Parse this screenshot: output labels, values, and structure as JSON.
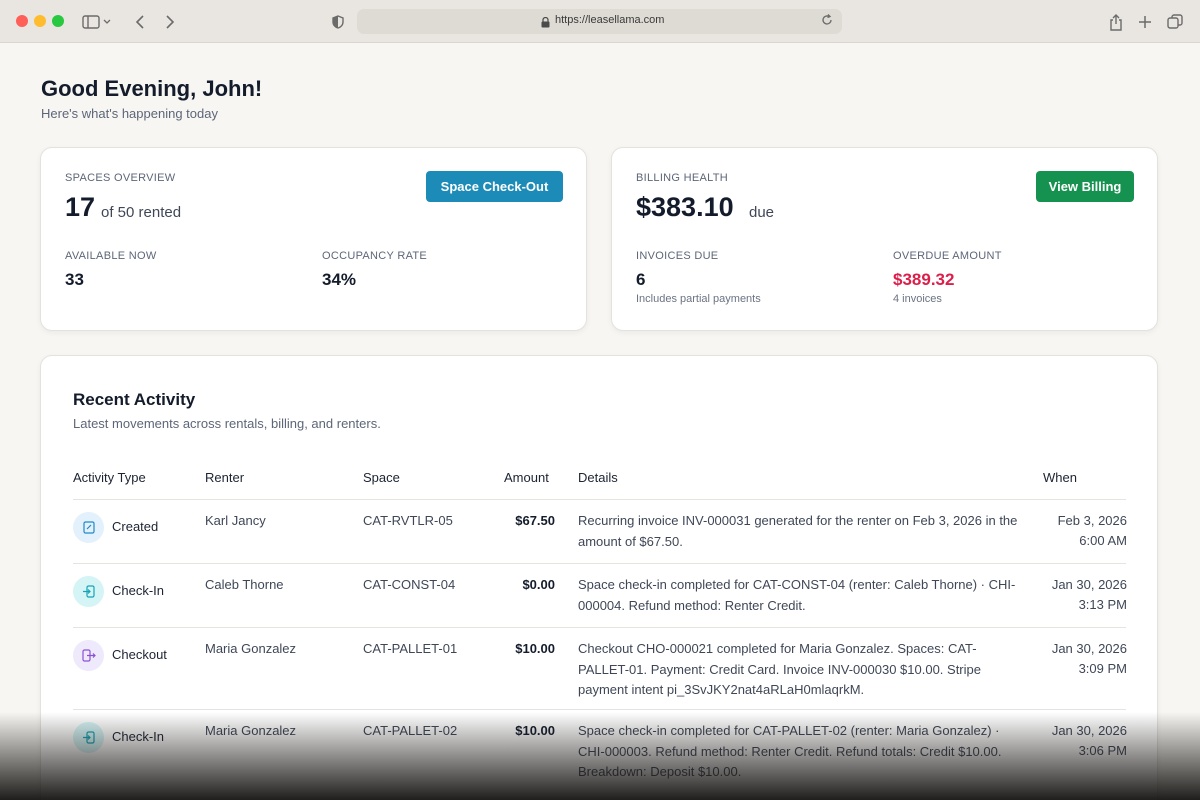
{
  "browser": {
    "url": "https://leasellama.com"
  },
  "greeting": {
    "title": "Good Evening, John!",
    "subtitle": "Here's what's happening today"
  },
  "spaces": {
    "label": "SPACES OVERVIEW",
    "rented": "17",
    "rented_suffix": "of 50 rented",
    "button": "Space Check-Out",
    "available_label": "AVAILABLE NOW",
    "available_value": "33",
    "occupancy_label": "OCCUPANCY RATE",
    "occupancy_value": "34%"
  },
  "billing": {
    "label": "BILLING HEALTH",
    "amount": "$383.10",
    "amount_suffix": "due",
    "button": "View Billing",
    "invoices_label": "INVOICES DUE",
    "invoices_value": "6",
    "invoices_note": "Includes partial payments",
    "overdue_label": "OVERDUE AMOUNT",
    "overdue_value": "$389.32",
    "overdue_note": "4 invoices"
  },
  "activity": {
    "title": "Recent Activity",
    "subtitle": "Latest movements across rentals, billing, and renters.",
    "columns": [
      "Activity Type",
      "Renter",
      "Space",
      "Amount",
      "Details",
      "When"
    ],
    "rows": [
      {
        "type": "Created",
        "icon": "invoice-icon",
        "renter": "Karl Jancy",
        "space": "CAT-RVTLR-05",
        "amount": "$67.50",
        "details": "Recurring invoice INV-000031 generated for the renter on Feb 3, 2026 in the amount of $67.50.",
        "date": "Feb 3, 2026",
        "time": "6:00 AM"
      },
      {
        "type": "Check-In",
        "icon": "check-in-icon",
        "renter": "Caleb Thorne",
        "space": "CAT-CONST-04",
        "amount": "$0.00",
        "details": "Space check-in completed for CAT-CONST-04 (renter: Caleb Thorne) · CHI-000004. Refund method: Renter Credit.",
        "date": "Jan 30, 2026",
        "time": "3:13 PM"
      },
      {
        "type": "Checkout",
        "icon": "check-out-icon",
        "renter": "Maria Gonzalez",
        "space": "CAT-PALLET-01",
        "amount": "$10.00",
        "details": "Checkout CHO-000021 completed for Maria Gonzalez. Spaces: CAT-PALLET-01. Payment: Credit Card. Invoice INV-000030 $10.00. Stripe payment intent pi_3SvJKY2nat4aRLaH0mlaqrkM.",
        "date": "Jan 30, 2026",
        "time": "3:09 PM"
      },
      {
        "type": "Check-In",
        "icon": "check-in-icon",
        "renter": "Maria Gonzalez",
        "space": "CAT-PALLET-02",
        "amount": "$10.00",
        "details": "Space check-in completed for CAT-PALLET-02 (renter: Maria Gonzalez) · CHI-000003. Refund method: Renter Credit. Refund totals: Credit $10.00. Breakdown: Deposit $10.00.",
        "date": "Jan 30, 2026",
        "time": "3:06 PM"
      }
    ]
  }
}
